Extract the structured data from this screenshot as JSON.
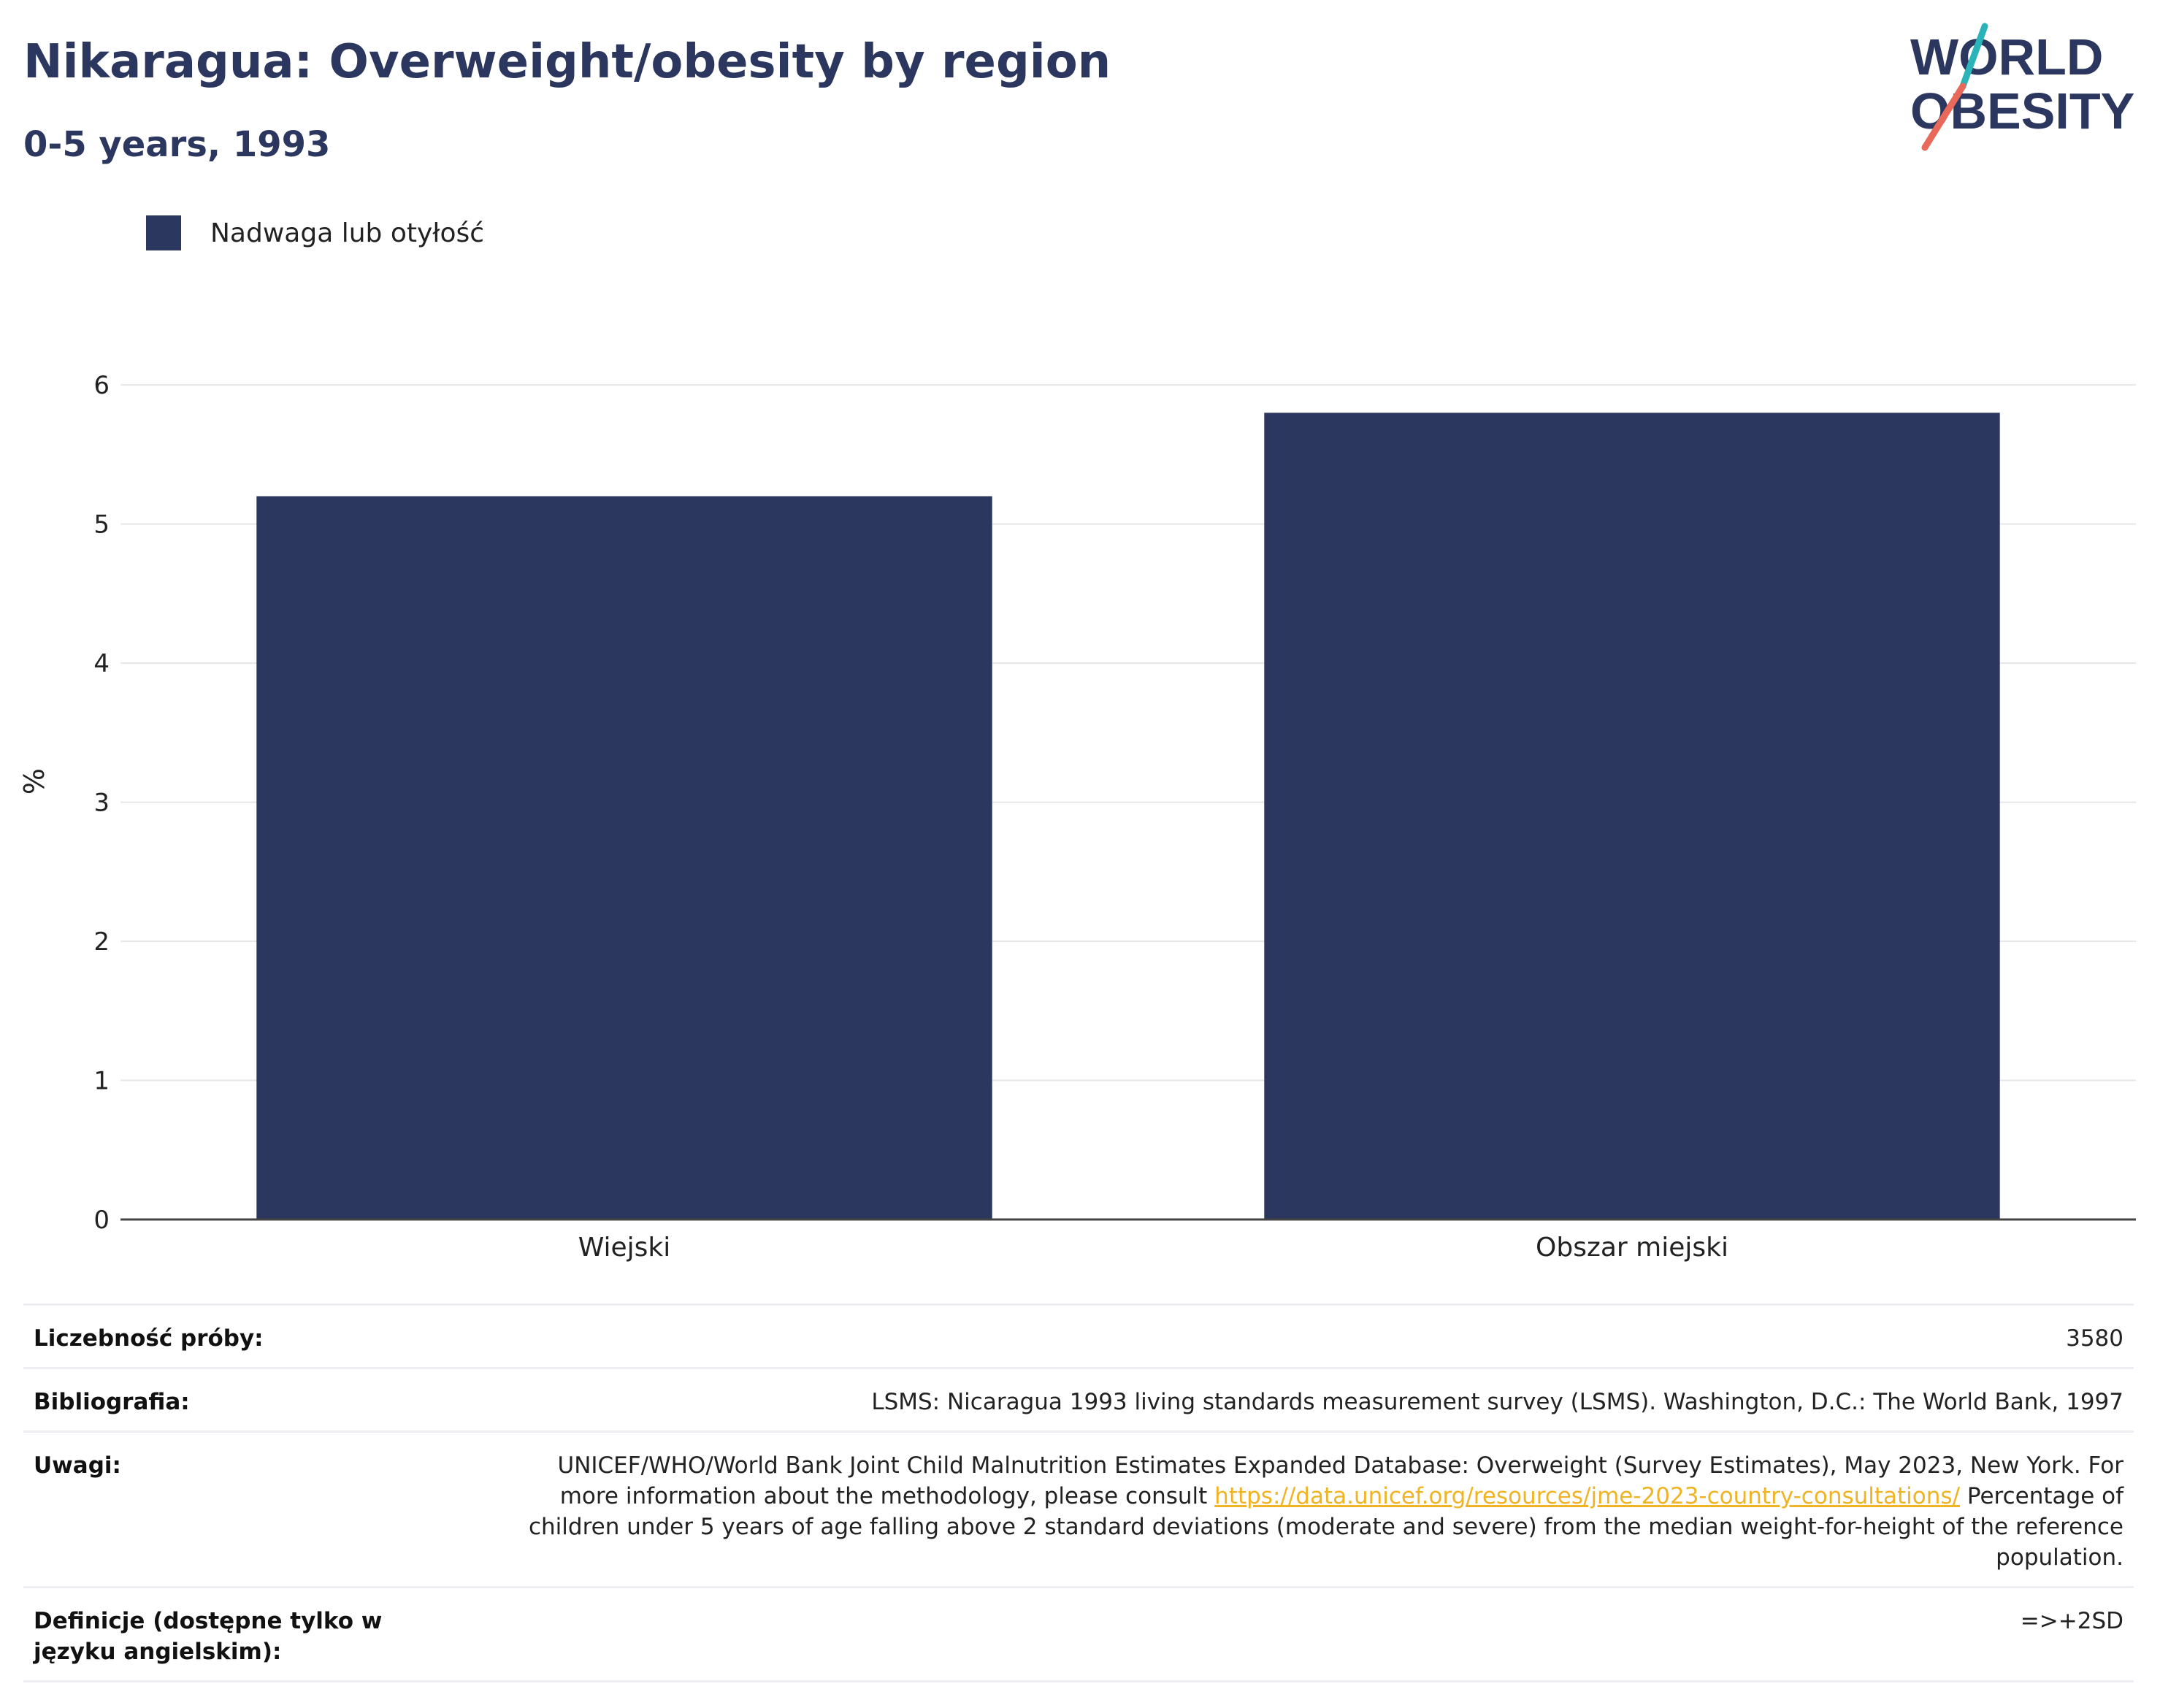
{
  "header": {
    "title": "Nikaragua: Overweight/obesity by region",
    "subtitle": "0-5 years, 1993"
  },
  "logo": {
    "line1": "WORLD",
    "line2": "OBESITY"
  },
  "colors": {
    "bar": "#2b375f",
    "title": "#2b375f",
    "link": "#f0b323",
    "grid": "#e6e6e6",
    "logo_teal": "#2ab3b8",
    "logo_coral": "#e8685a"
  },
  "chart_data": {
    "type": "bar",
    "categories": [
      "Wiejski",
      "Obszar miejski"
    ],
    "series": [
      {
        "name": "Nadwaga lub otyłość",
        "values": [
          5.2,
          5.8
        ]
      }
    ],
    "ylabel": "%",
    "xlabel": "",
    "ylim": [
      0,
      6.3
    ],
    "yticks": [
      0,
      1,
      2,
      3,
      4,
      5,
      6
    ],
    "grid": true,
    "legend": "top-left"
  },
  "info": {
    "sample_label": "Liczebność próby:",
    "sample_value": "3580",
    "bib_label": "Bibliografia:",
    "bib_value": "LSMS: Nicaragua 1993 living standards measurement survey (LSMS). Washington, D.C.: The World Bank, 1997",
    "notes_label": "Uwagi:",
    "notes_text1": "UNICEF/WHO/World Bank Joint Child Malnutrition Estimates Expanded Database: Overweight (Survey Estimates), May 2023, New York. For more information about the methodology, please consult",
    "notes_link": "https://data.unicef.org/resources/jme-2023-country-consultations/",
    "notes_text2": "Percentage of children under 5 years of age falling above 2 standard deviations (moderate and severe) from the median weight-for-height of the reference population.",
    "def_label": "Definicje (dostępne tylko w języku angielskim):",
    "def_value": "=>+2SD"
  }
}
